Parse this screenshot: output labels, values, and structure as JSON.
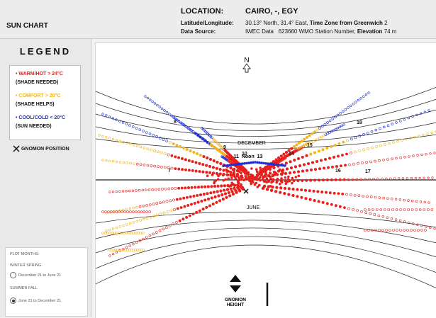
{
  "header": {
    "app_title": "SUN CHART",
    "location_label": "LOCATION:",
    "location_value": "CAIRO, -, EGY",
    "latlon_label": "Latitude/Longitude:",
    "latlon_value": "30.13° North, 31.4° East,",
    "timezone_label": "Time Zone from Greenwich",
    "timezone_value": "2",
    "datasource_label": "Data Source:",
    "datasource_value": "IWEC Data",
    "wmo_value": "623660 WMO Station Number,",
    "elevation_label": "Elevation",
    "elevation_value": "74 m"
  },
  "legend": {
    "title": "LEGEND",
    "items": [
      {
        "label": "WARM/HOT > 24°C",
        "note": "(SHADE NEEDED)",
        "color": "#e8201c"
      },
      {
        "label": "COMFORT > 20°C",
        "note": "(SHADE HELPS)",
        "color": "#f2b51d"
      },
      {
        "label": "COOL/COLD < 20°C",
        "note": "(SUN NEEDED)",
        "color": "#1f2fd1"
      }
    ],
    "gnomon_label": "GNOMON POSITION",
    "gnomon_icon": "gnomon-cross-icon"
  },
  "plot_months": {
    "title": "PLOT MONTHS:",
    "group1_label": "WINTER SPRING",
    "option1_label": "December 21 to June 21",
    "group2_label": "SUMMER FALL",
    "option2_label": "June 21 to December 21",
    "selected": "option2"
  },
  "chart": {
    "north_label": "N",
    "north_icon": "north-arrow-icon",
    "december_label": "DECEMBER",
    "june_label": "JUNE",
    "noon_label": "11  Noon  13",
    "gnomon_height_label": "GNOMON\nHEIGHT",
    "gnomon_height_icon": "up-down-arrow-icon",
    "hour_labels": [
      "7",
      "8",
      "9",
      "10",
      "11",
      "12",
      "13",
      "14",
      "15",
      "16",
      "17",
      "18"
    ],
    "colors": {
      "hot": "#e8201c",
      "comfort": "#f2b51d",
      "cold": "#1f2fd1",
      "line": "#222222"
    }
  }
}
